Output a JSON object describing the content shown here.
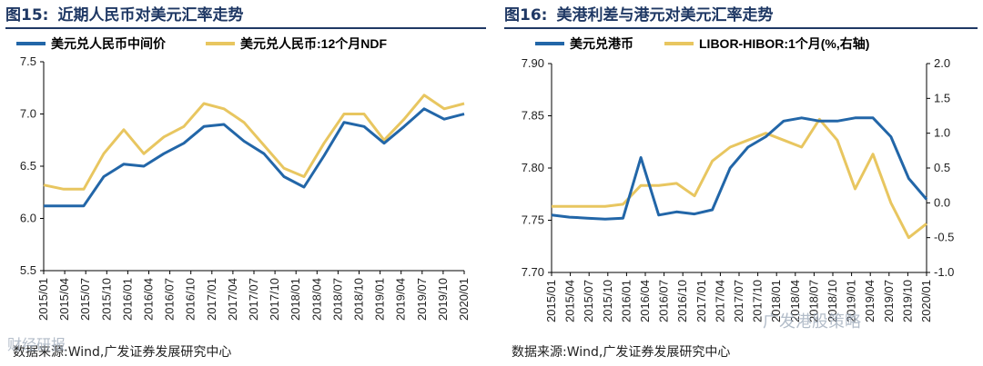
{
  "left": {
    "fig_label": "图15:",
    "title": "近期人民币对美元汇率走势",
    "source": "数据来源:Wind,广发证券发展研究中心",
    "watermark": "财经研报"
  },
  "right": {
    "fig_label": "图16:",
    "title": "美港利差与港元对美元汇率走势",
    "source": "数据来源:Wind,广发证券发展研究中心",
    "watermark": "广发港股策略"
  },
  "chart_data": [
    {
      "type": "line",
      "title": "近期人民币对美元汇率走势",
      "x_ticks": [
        "2015/01",
        "2015/04",
        "2015/07",
        "2015/10",
        "2016/01",
        "2016/04",
        "2016/07",
        "2016/10",
        "2017/01",
        "2017/04",
        "2017/07",
        "2017/10",
        "2018/01",
        "2018/04",
        "2018/07",
        "2018/10",
        "2019/01",
        "2019/04",
        "2019/07",
        "2019/10",
        "2020/01"
      ],
      "ylim": [
        5.5,
        7.5
      ],
      "y_ticks": [
        "5.5",
        "6.0",
        "6.5",
        "7.0",
        "7.5"
      ],
      "grid": false,
      "legend": "top",
      "colors": {
        "series_1": "#2266a8",
        "series_2": "#e8c660"
      },
      "series": [
        {
          "name": "美元兑人民币中间价",
          "values": [
            6.12,
            6.12,
            6.12,
            6.4,
            6.52,
            6.5,
            6.62,
            6.72,
            6.88,
            6.9,
            6.74,
            6.62,
            6.4,
            6.3,
            6.6,
            6.92,
            6.88,
            6.72,
            6.88,
            7.05,
            6.95,
            7.0
          ]
        },
        {
          "name": "美元兑人民币:12个月NDF",
          "values": [
            6.32,
            6.28,
            6.28,
            6.62,
            6.85,
            6.62,
            6.78,
            6.88,
            7.1,
            7.05,
            6.92,
            6.7,
            6.48,
            6.4,
            6.72,
            7.0,
            7.0,
            6.75,
            6.95,
            7.18,
            7.05,
            7.1
          ]
        }
      ]
    },
    {
      "type": "line",
      "title": "美港利差与港元对美元汇率走势",
      "x_ticks": [
        "2015/01",
        "2015/04",
        "2015/07",
        "2015/10",
        "2016/01",
        "2016/04",
        "2016/07",
        "2016/10",
        "2017/01",
        "2017/04",
        "2017/07",
        "2017/10",
        "2018/01",
        "2018/04",
        "2018/07",
        "2018/10",
        "2019/01",
        "2019/04",
        "2019/07",
        "2019/10",
        "2020/01"
      ],
      "ylim_left": [
        7.7,
        7.9
      ],
      "ylim_right": [
        -1.0,
        2.0
      ],
      "y_ticks_left": [
        "7.70",
        "7.75",
        "7.80",
        "7.85",
        "7.90"
      ],
      "y_ticks_right": [
        "-1.0",
        "-0.5",
        "0.0",
        "0.5",
        "1.0",
        "1.5",
        "2.0"
      ],
      "grid": false,
      "legend": "top",
      "colors": {
        "series_1": "#2266a8",
        "series_2": "#e8c660"
      },
      "series": [
        {
          "name": "美元兑港币",
          "axis": "left",
          "values": [
            7.755,
            7.753,
            7.752,
            7.751,
            7.752,
            7.81,
            7.755,
            7.758,
            7.756,
            7.76,
            7.8,
            7.82,
            7.83,
            7.845,
            7.848,
            7.845,
            7.845,
            7.848,
            7.848,
            7.83,
            7.79,
            7.77
          ]
        },
        {
          "name": "LIBOR-HIBOR:1个月(%,右轴)",
          "axis": "right",
          "values": [
            -0.05,
            -0.05,
            -0.05,
            -0.05,
            -0.02,
            0.25,
            0.25,
            0.28,
            0.1,
            0.6,
            0.8,
            0.9,
            1.0,
            0.9,
            0.8,
            1.2,
            0.9,
            0.2,
            0.7,
            0.0,
            -0.5,
            -0.3
          ]
        }
      ]
    }
  ]
}
